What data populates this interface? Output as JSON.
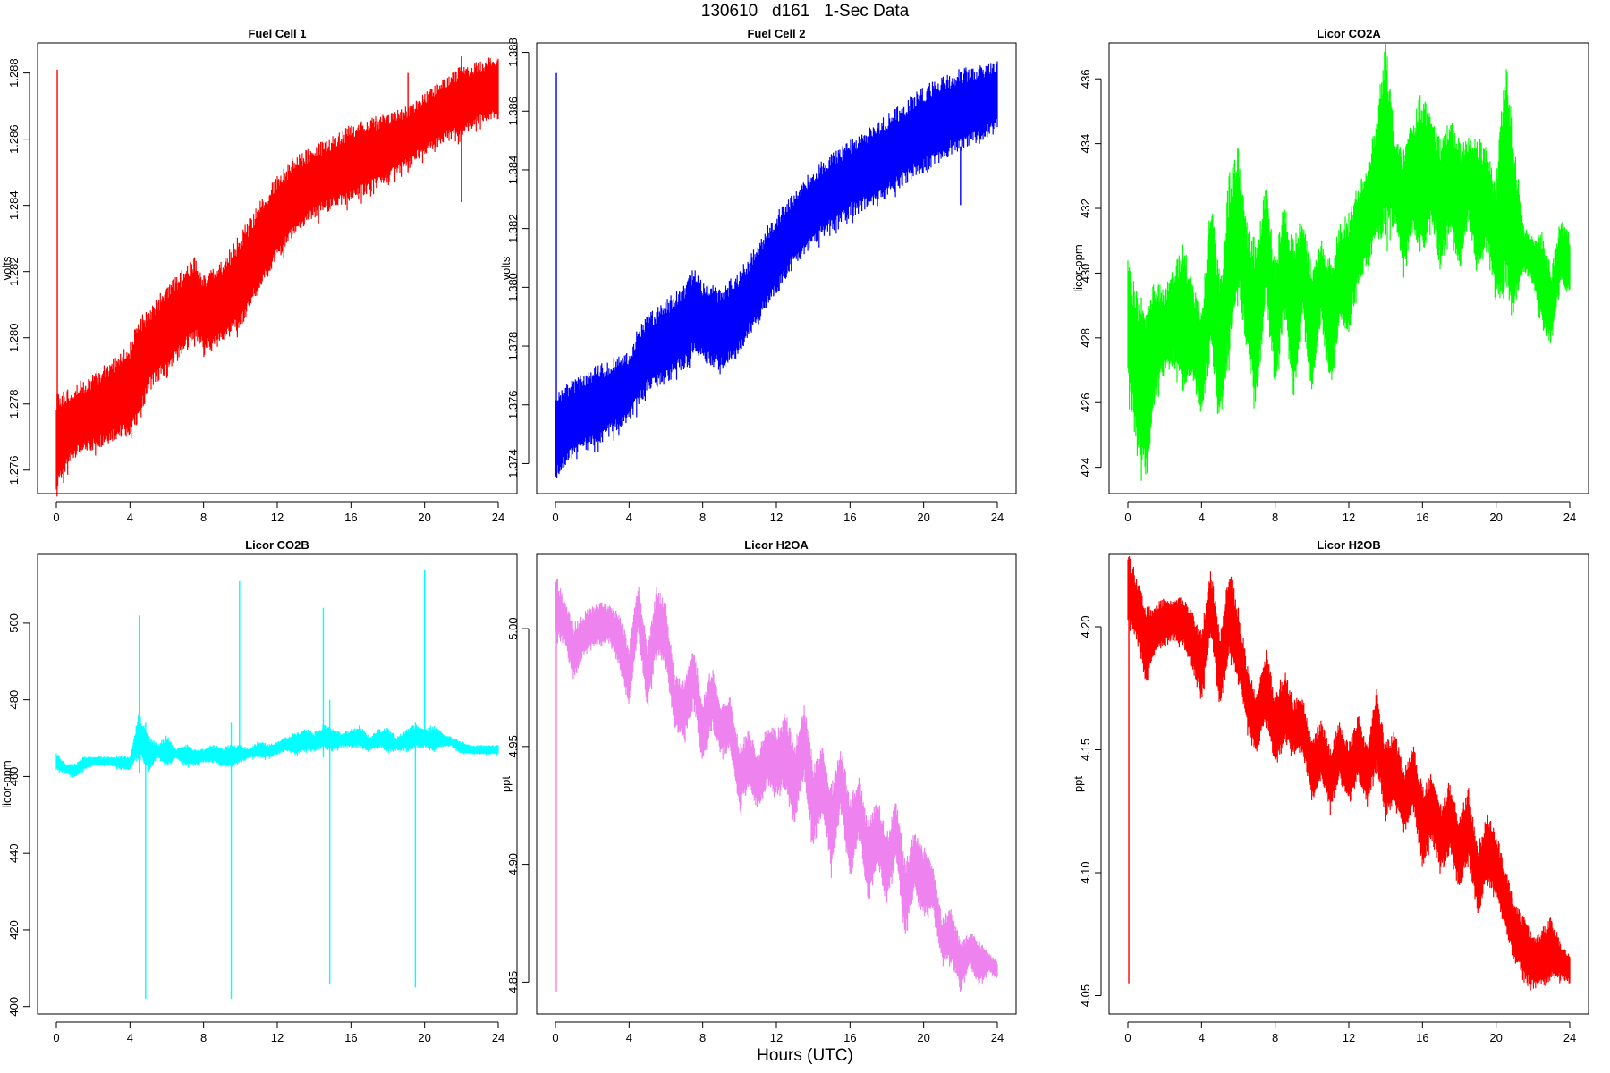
{
  "figure": {
    "title": "130610   d161   1-Sec Data",
    "xlabel": "Hours (UTC)"
  },
  "chart_data": [
    {
      "type": "line",
      "title": "Fuel Cell 1",
      "ylabel": "volts",
      "color": "#ff0000",
      "xlim": [
        0,
        24
      ],
      "ylim": [
        1.2754,
        1.2888
      ],
      "xticks": [
        "0",
        "4",
        "8",
        "12",
        "16",
        "20",
        "24"
      ],
      "yticks": [
        "1.276",
        "1.278",
        "1.280",
        "1.282",
        "1.284",
        "1.286",
        "1.288"
      ],
      "spikes": [
        [
          0.05,
          1.276,
          1.2881
        ],
        [
          19.1,
          1.285,
          1.288
        ],
        [
          22.0,
          1.2841,
          1.2885
        ]
      ],
      "series": [
        {
          "x": [
            0,
            1,
            2,
            3,
            4,
            4.5,
            5,
            6,
            7,
            7.5,
            8,
            9,
            10,
            11,
            12,
            13,
            14,
            15,
            16,
            17,
            18,
            19,
            20,
            21,
            22,
            23,
            24
          ],
          "low": [
            1.2757,
            1.2766,
            1.2768,
            1.2771,
            1.2773,
            1.2778,
            1.2786,
            1.2792,
            1.2798,
            1.2802,
            1.2798,
            1.28,
            1.2806,
            1.2816,
            1.2826,
            1.2833,
            1.2838,
            1.2841,
            1.2843,
            1.2846,
            1.2849,
            1.2853,
            1.2857,
            1.2861,
            1.2863,
            1.2866,
            1.2868
          ],
          "high": [
            1.278,
            1.2784,
            1.2787,
            1.2791,
            1.2796,
            1.2803,
            1.2807,
            1.2813,
            1.2819,
            1.2822,
            1.2817,
            1.2821,
            1.2829,
            1.2838,
            1.2847,
            1.2853,
            1.2856,
            1.2859,
            1.2862,
            1.2864,
            1.2866,
            1.2868,
            1.2872,
            1.2877,
            1.288,
            1.2882,
            1.2884
          ]
        }
      ]
    },
    {
      "type": "line",
      "title": "Fuel Cell 2",
      "ylabel": "volts",
      "color": "#0000ff",
      "xlim": [
        0,
        24
      ],
      "ylim": [
        1.3731,
        1.3882
      ],
      "xticks": [
        "0",
        "4",
        "8",
        "12",
        "16",
        "20",
        "24"
      ],
      "yticks": [
        "1.374",
        "1.376",
        "1.378",
        "1.380",
        "1.382",
        "1.384",
        "1.386",
        "1.388"
      ],
      "spikes": [
        [
          0.05,
          1.374,
          1.3873
        ],
        [
          22.0,
          1.3828,
          1.3848
        ]
      ],
      "series": [
        {
          "x": [
            0,
            1,
            2,
            3,
            4,
            4.5,
            5,
            6,
            7,
            7.5,
            8,
            9,
            10,
            11,
            12,
            13,
            14,
            15,
            16,
            17,
            18,
            19,
            20,
            21,
            22,
            23,
            24
          ],
          "low": [
            1.3737,
            1.3745,
            1.3748,
            1.3752,
            1.3756,
            1.3762,
            1.3767,
            1.377,
            1.3775,
            1.378,
            1.3778,
            1.3774,
            1.378,
            1.379,
            1.38,
            1.381,
            1.3817,
            1.3822,
            1.3826,
            1.383,
            1.3833,
            1.3838,
            1.3842,
            1.3846,
            1.3849,
            1.3852,
            1.3856
          ],
          "high": [
            1.3762,
            1.3766,
            1.377,
            1.3773,
            1.3776,
            1.3784,
            1.3788,
            1.3793,
            1.3799,
            1.3804,
            1.38,
            1.3797,
            1.3803,
            1.3813,
            1.3823,
            1.3831,
            1.3838,
            1.3843,
            1.3848,
            1.3852,
            1.3856,
            1.3861,
            1.3866,
            1.3869,
            1.3872,
            1.3873,
            1.3875
          ]
        }
      ]
    },
    {
      "type": "line",
      "title": "Licor CO2A",
      "ylabel": "licor-ppm",
      "color": "#00ff00",
      "xlim": [
        0,
        24
      ],
      "ylim": [
        423.3,
        437.0
      ],
      "xticks": [
        "0",
        "4",
        "8",
        "12",
        "16",
        "20",
        "24"
      ],
      "yticks": [
        "424",
        "426",
        "428",
        "430",
        "432",
        "434",
        "436"
      ],
      "series": [
        {
          "x": [
            0,
            0.5,
            1,
            1.5,
            2,
            2.5,
            3,
            3.5,
            4,
            4.5,
            5,
            5.5,
            6,
            6.5,
            7,
            7.5,
            8,
            8.5,
            9,
            9.5,
            10,
            10.5,
            11,
            11.5,
            12,
            12.5,
            13,
            13.5,
            14,
            14.5,
            15,
            15.5,
            16,
            16.5,
            17,
            17.5,
            18,
            18.5,
            19,
            19.5,
            20,
            20.5,
            21,
            21.5,
            22,
            22.5,
            23,
            23.5,
            24
          ],
          "low": [
            426.8,
            425.0,
            424.0,
            426.5,
            427.2,
            427.4,
            426.7,
            427.0,
            425.8,
            428.0,
            425.7,
            428.0,
            430.0,
            427.7,
            426.3,
            429.5,
            426.8,
            429.0,
            426.3,
            429.0,
            426.6,
            428.8,
            426.7,
            428.6,
            428.4,
            430.0,
            430.4,
            431.2,
            431.7,
            431.7,
            430.4,
            431.7,
            430.8,
            431.9,
            430.6,
            431.7,
            430.3,
            431.9,
            430.2,
            431.1,
            429.4,
            430.0,
            429.2,
            430.2,
            429.8,
            428.5,
            428.0,
            429.8,
            429.5
          ],
          "high": [
            430.0,
            429.0,
            428.5,
            429.5,
            429.2,
            430.0,
            430.5,
            429.5,
            428.5,
            432.0,
            429.5,
            432.5,
            433.5,
            431.0,
            430.5,
            432.5,
            430.0,
            432.0,
            430.5,
            431.5,
            429.8,
            430.8,
            430.0,
            431.2,
            431.5,
            432.5,
            433.0,
            434.5,
            436.7,
            434.0,
            433.5,
            434.5,
            435.2,
            434.5,
            433.8,
            434.5,
            433.8,
            434.0,
            433.8,
            433.6,
            432.5,
            436.2,
            433.5,
            431.3,
            431.0,
            431.0,
            430.0,
            431.5,
            431.0
          ]
        }
      ]
    },
    {
      "type": "line",
      "title": "Licor CO2B",
      "ylabel": "licor-ppm",
      "color": "#00ffff",
      "xlim": [
        0,
        24
      ],
      "ylim": [
        399,
        517
      ],
      "xticks": [
        "0",
        "4",
        "8",
        "12",
        "16",
        "20",
        "24"
      ],
      "yticks": [
        "400",
        "420",
        "440",
        "460",
        "480",
        "500"
      ],
      "spikes": [
        [
          4.5,
          461,
          502
        ],
        [
          4.85,
          402,
          474
        ],
        [
          9.5,
          402,
          474
        ],
        [
          9.95,
          465,
          511
        ],
        [
          14.5,
          465,
          504
        ],
        [
          14.85,
          406,
          480
        ],
        [
          19.5,
          405,
          474
        ],
        [
          20.0,
          470,
          514
        ]
      ],
      "series": [
        {
          "x": [
            0,
            0.5,
            1,
            1.5,
            2,
            2.5,
            3,
            3.5,
            4,
            4.5,
            5,
            5.5,
            6,
            6.5,
            7,
            7.5,
            8,
            8.5,
            9,
            9.5,
            10,
            10.5,
            11,
            11.5,
            12,
            12.5,
            13,
            13.5,
            14,
            14.5,
            15,
            15.5,
            16,
            16.5,
            17,
            17.5,
            18,
            18.5,
            19,
            19.5,
            20,
            20.5,
            21,
            21.5,
            22,
            22.5,
            23,
            23.5,
            24
          ],
          "low": [
            462,
            461,
            460,
            462,
            463,
            463,
            463,
            462,
            462,
            466,
            462,
            465,
            463,
            465,
            463,
            463,
            464,
            464,
            463,
            463,
            464,
            465,
            465,
            465,
            466,
            467,
            466,
            467,
            467,
            468,
            467,
            468,
            468,
            468,
            467,
            468,
            467,
            467,
            467,
            468,
            468,
            467,
            468,
            468,
            466,
            466,
            466,
            466,
            466
          ],
          "high": [
            466,
            463,
            463,
            465,
            465,
            465,
            465,
            465,
            465,
            476,
            470,
            468,
            470,
            467,
            468,
            467,
            467,
            468,
            467,
            468,
            468,
            467,
            469,
            468,
            469,
            470,
            471,
            472,
            471,
            473,
            472,
            471,
            472,
            473,
            470,
            472,
            472,
            470,
            472,
            473,
            472,
            473,
            471,
            470,
            469,
            468,
            468,
            468,
            468
          ]
        }
      ]
    },
    {
      "type": "line",
      "title": "Licor H2OA",
      "ylabel": "ppt",
      "color": "#ee82ee",
      "xlim": [
        0,
        24
      ],
      "ylim": [
        4.838,
        5.03
      ],
      "xticks": [
        "0",
        "4",
        "8",
        "12",
        "16",
        "20",
        "24"
      ],
      "yticks": [
        "4.85",
        "4.90",
        "4.95",
        "5.00"
      ],
      "spikes": [
        [
          0.05,
          4.846,
          5.02
        ]
      ],
      "series": [
        {
          "x": [
            0,
            0.5,
            1,
            1.5,
            2,
            2.5,
            3,
            3.5,
            4,
            4.5,
            5,
            5.5,
            6,
            6.5,
            7,
            7.5,
            8,
            8.5,
            9,
            9.5,
            10,
            10.5,
            11,
            11.5,
            12,
            12.5,
            13,
            13.5,
            14,
            14.5,
            15,
            15.5,
            16,
            16.5,
            17,
            17.5,
            18,
            18.5,
            19,
            19.5,
            20,
            20.5,
            21,
            21.5,
            22,
            22.5,
            23,
            23.5,
            24
          ],
          "low": [
            4.998,
            4.995,
            4.98,
            4.99,
            4.993,
            4.995,
            4.995,
            4.985,
            4.97,
            5.0,
            4.968,
            4.992,
            4.985,
            4.958,
            4.955,
            4.97,
            4.945,
            4.96,
            4.948,
            4.95,
            4.925,
            4.935,
            4.925,
            4.935,
            4.93,
            4.935,
            4.918,
            4.94,
            4.91,
            4.925,
            4.9,
            4.925,
            4.895,
            4.915,
            4.886,
            4.903,
            4.885,
            4.905,
            4.872,
            4.89,
            4.88,
            4.882,
            4.86,
            4.86,
            4.848,
            4.858,
            4.85,
            4.855,
            4.852
          ],
          "high": [
            5.022,
            5.01,
            5.0,
            5.005,
            5.008,
            5.01,
            5.008,
            5.005,
            4.99,
            5.018,
            4.99,
            5.015,
            5.008,
            4.978,
            4.975,
            4.99,
            4.968,
            4.982,
            4.965,
            4.97,
            4.948,
            4.955,
            4.945,
            4.958,
            4.955,
            4.962,
            4.948,
            4.966,
            4.94,
            4.948,
            4.93,
            4.948,
            4.925,
            4.935,
            4.915,
            4.926,
            4.91,
            4.925,
            4.898,
            4.912,
            4.905,
            4.898,
            4.875,
            4.88,
            4.865,
            4.87,
            4.866,
            4.862,
            4.858
          ]
        }
      ]
    },
    {
      "type": "line",
      "title": "Licor H2OB",
      "ylabel": "ppt",
      "color": "#ff0000",
      "xlim": [
        0,
        24
      ],
      "ylim": [
        4.044,
        4.228
      ],
      "xticks": [
        "0",
        "4",
        "8",
        "12",
        "16",
        "20",
        "24"
      ],
      "yticks": [
        "4.05",
        "4.10",
        "4.15",
        "4.20"
      ],
      "spikes": [
        [
          0.05,
          4.055,
          4.218
        ]
      ],
      "series": [
        {
          "x": [
            0,
            0.5,
            1,
            1.5,
            2,
            2.5,
            3,
            3.5,
            4,
            4.5,
            5,
            5.5,
            6,
            6.5,
            7,
            7.5,
            8,
            8.5,
            9,
            9.5,
            10,
            10.5,
            11,
            11.5,
            12,
            12.5,
            13,
            13.5,
            14,
            14.5,
            15,
            15.5,
            16,
            16.5,
            17,
            17.5,
            18,
            18.5,
            19,
            19.5,
            20,
            20.5,
            21,
            21.5,
            22,
            22.5,
            23,
            23.5,
            24
          ],
          "low": [
            4.205,
            4.195,
            4.18,
            4.192,
            4.194,
            4.196,
            4.194,
            4.185,
            4.172,
            4.2,
            4.168,
            4.192,
            4.182,
            4.16,
            4.15,
            4.165,
            4.145,
            4.155,
            4.15,
            4.15,
            4.132,
            4.14,
            4.128,
            4.14,
            4.13,
            4.14,
            4.13,
            4.145,
            4.125,
            4.132,
            4.118,
            4.128,
            4.105,
            4.116,
            4.102,
            4.11,
            4.095,
            4.108,
            4.085,
            4.098,
            4.092,
            4.078,
            4.065,
            4.06,
            4.055,
            4.055,
            4.058,
            4.058,
            4.056
          ],
          "high": [
            4.228,
            4.218,
            4.205,
            4.208,
            4.21,
            4.21,
            4.21,
            4.205,
            4.195,
            4.222,
            4.195,
            4.222,
            4.205,
            4.182,
            4.17,
            4.188,
            4.17,
            4.18,
            4.168,
            4.17,
            4.152,
            4.16,
            4.148,
            4.16,
            4.15,
            4.162,
            4.15,
            4.172,
            4.15,
            4.155,
            4.14,
            4.15,
            4.132,
            4.138,
            4.125,
            4.135,
            4.12,
            4.132,
            4.108,
            4.122,
            4.115,
            4.1,
            4.085,
            4.08,
            4.072,
            4.075,
            4.08,
            4.07,
            4.066
          ]
        }
      ]
    }
  ]
}
